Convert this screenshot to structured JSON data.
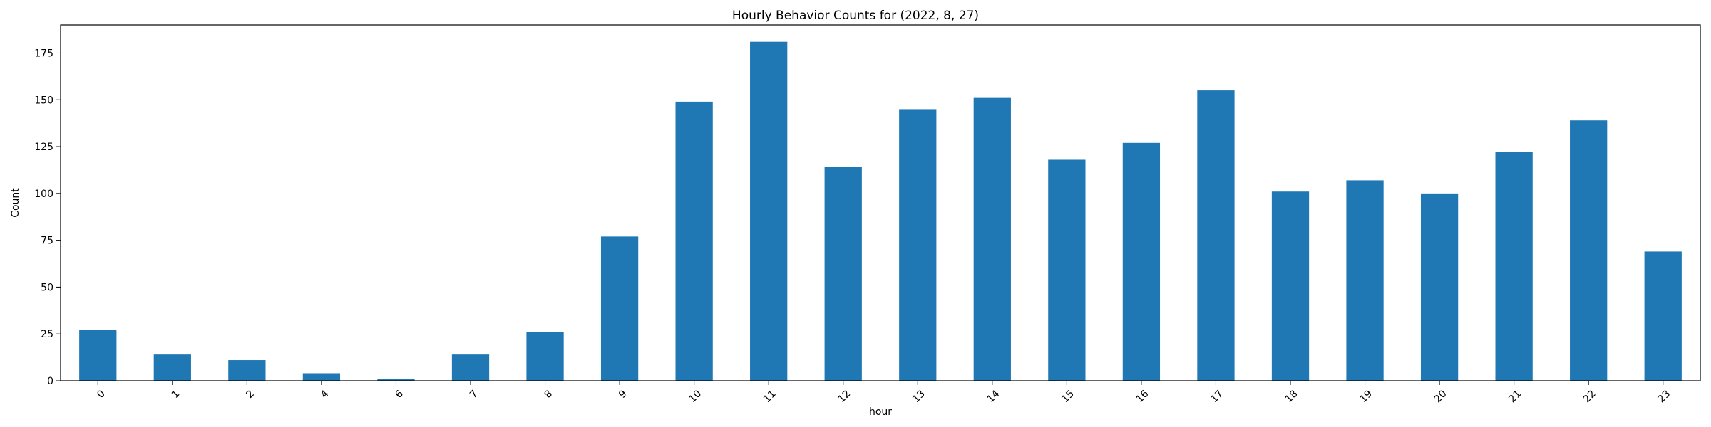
{
  "chart_data": {
    "type": "bar",
    "title": "Hourly Behavior Counts for (2022, 8, 27)",
    "xlabel": "hour",
    "ylabel": "Count",
    "categories": [
      "0",
      "1",
      "2",
      "4",
      "6",
      "7",
      "8",
      "9",
      "10",
      "11",
      "12",
      "13",
      "14",
      "15",
      "16",
      "17",
      "18",
      "19",
      "20",
      "21",
      "22",
      "23"
    ],
    "values": [
      27,
      14,
      11,
      4,
      1,
      14,
      26,
      77,
      149,
      181,
      114,
      145,
      151,
      118,
      127,
      155,
      101,
      107,
      100,
      122,
      139,
      69
    ],
    "ylim": [
      0,
      190
    ],
    "yticks": [
      0,
      25,
      50,
      75,
      100,
      125,
      150,
      175
    ],
    "xtick_rotation": 45,
    "grid": false,
    "legend": false,
    "bar_color": "#1f77b4"
  }
}
